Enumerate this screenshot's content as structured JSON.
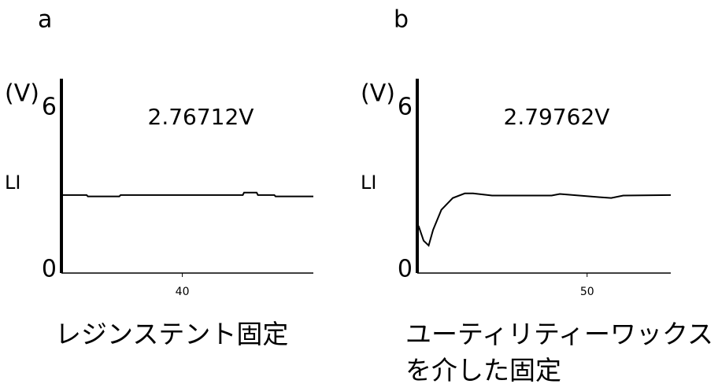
{
  "chart_data": [
    {
      "type": "line",
      "panel_label": "a",
      "y_unit": "(V)",
      "y_label": "LI",
      "annotation": "2.76712V",
      "caption": "レジンステント固定",
      "x": [
        30.4,
        32.4,
        32.5,
        35.0,
        35.1,
        44.8,
        44.9,
        45.9,
        46.0,
        47.3,
        47.4,
        50.4
      ],
      "values": [
        2.89,
        2.89,
        2.84,
        2.84,
        2.89,
        2.89,
        2.98,
        2.98,
        2.89,
        2.89,
        2.84,
        2.84
      ],
      "color": "#000000",
      "xlim": [
        30.4,
        50.4
      ],
      "ylim": [
        0,
        7.2
      ],
      "xticks": [
        40
      ],
      "yticks": [
        0,
        6
      ]
    },
    {
      "type": "line",
      "panel_label": "b",
      "y_unit": "(V)",
      "y_label": "LI",
      "annotation": "2.79762V",
      "caption": "ユーティリティーワックスを介した固定",
      "x": [
        36.7,
        37.1,
        37.5,
        37.85,
        38.5,
        39.4,
        40.35,
        41.0,
        42.5,
        47.2,
        47.85,
        51.0,
        51.9,
        52.85,
        56.6
      ],
      "values": [
        1.75,
        1.2,
        1.02,
        1.6,
        2.34,
        2.78,
        2.95,
        2.95,
        2.87,
        2.87,
        2.93,
        2.81,
        2.78,
        2.87,
        2.89
      ],
      "color": "#000000",
      "xlim": [
        36.6,
        56.6
      ],
      "ylim": [
        0,
        7.2
      ],
      "xticks": [
        50
      ],
      "yticks": [
        0,
        6
      ]
    }
  ]
}
